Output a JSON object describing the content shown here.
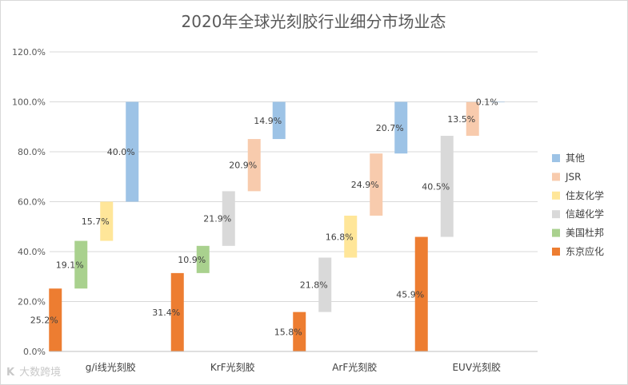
{
  "chart_data": {
    "type": "bar",
    "title": "2020年全球光刻胶行业细分市场业态",
    "categories": [
      "g/i线光刻胶",
      "KrF光刻胶",
      "ArF光刻胶",
      "EUV光刻胶"
    ],
    "series": [
      {
        "name": "东京应化",
        "color": "#ED7D31",
        "values": [
          25.2,
          31.4,
          15.8,
          45.9
        ]
      },
      {
        "name": "美国杜邦",
        "color": "#A9D18E",
        "values": [
          19.1,
          10.9,
          null,
          null
        ]
      },
      {
        "name": "信越化学",
        "color": "#D9D9D9",
        "values": [
          null,
          21.9,
          21.8,
          40.5
        ]
      },
      {
        "name": "住友化学",
        "color": "#FFE699",
        "values": [
          15.7,
          null,
          16.8,
          null
        ]
      },
      {
        "name": "JSR",
        "color": "#F8CBAD",
        "values": [
          null,
          20.9,
          24.9,
          13.5
        ]
      },
      {
        "name": "其他",
        "color": "#9DC3E6",
        "values": [
          40.0,
          14.9,
          20.7,
          0.1
        ]
      }
    ],
    "ylim": [
      0,
      120
    ],
    "yticks": [
      "0.0%",
      "20.0%",
      "40.0%",
      "60.0%",
      "80.0%",
      "100.0%",
      "120.0%"
    ],
    "legend_position": "right"
  },
  "watermark": {
    "mark": "K",
    "text": "大数跨境"
  }
}
